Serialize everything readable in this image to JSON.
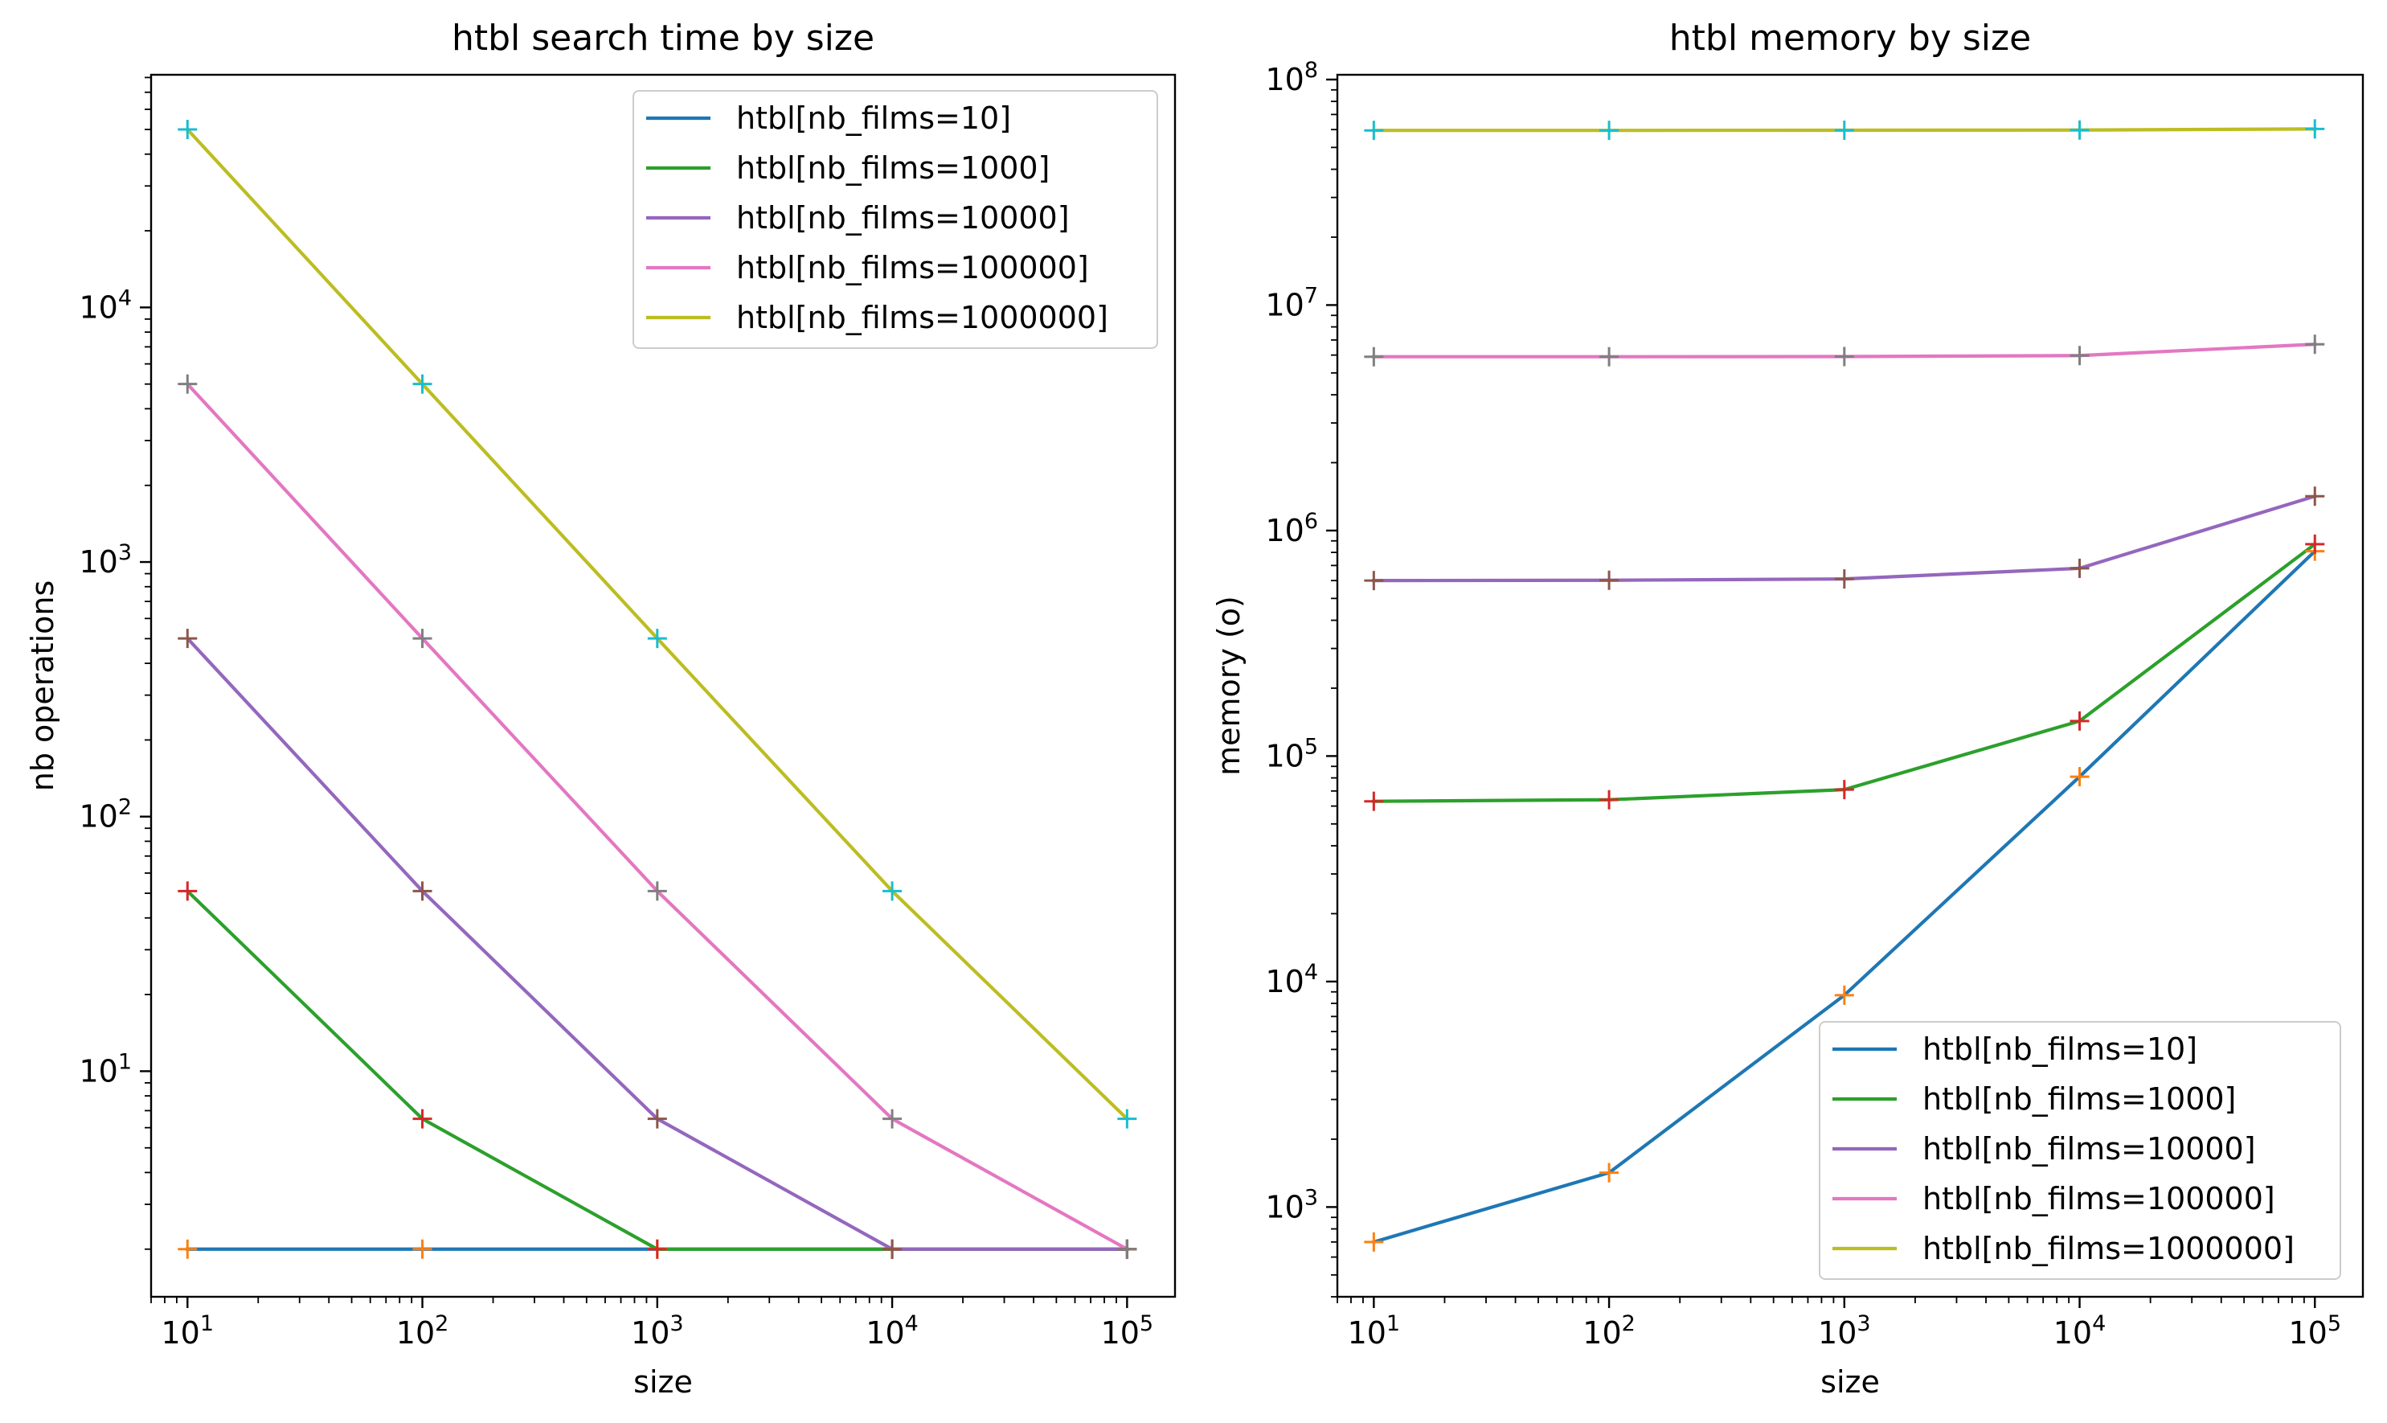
{
  "chart_data": [
    {
      "type": "line",
      "title": "htbl search time by size",
      "xlabel": "size",
      "ylabel": "nb operations",
      "xscale": "log",
      "yscale": "log",
      "xlim": [
        7,
        160000
      ],
      "ylim": [
        1.3,
        82000
      ],
      "xticks": [
        {
          "value": 10,
          "base": "10",
          "exp": "1"
        },
        {
          "value": 100,
          "base": "10",
          "exp": "2"
        },
        {
          "value": 1000,
          "base": "10",
          "exp": "3"
        },
        {
          "value": 10000,
          "base": "10",
          "exp": "4"
        },
        {
          "value": 100000,
          "base": "10",
          "exp": "5"
        }
      ],
      "yticks": [
        {
          "value": 10,
          "base": "10",
          "exp": "1"
        },
        {
          "value": 100,
          "base": "10",
          "exp": "2"
        },
        {
          "value": 1000,
          "base": "10",
          "exp": "3"
        },
        {
          "value": 10000,
          "base": "10",
          "exp": "4"
        }
      ],
      "grid": false,
      "legend_loc": "upper right",
      "x": [
        10,
        100,
        1000,
        10000,
        100000
      ],
      "series": [
        {
          "name": "htbl[nb_films=10]",
          "color": "#1f77b4",
          "marker_color": "#ff7f0e",
          "values": [
            2,
            2,
            2,
            2,
            2
          ]
        },
        {
          "name": "htbl[nb_films=1000]",
          "color": "#2ca02c",
          "marker_color": "#d62728",
          "values": [
            51,
            6.5,
            2,
            2,
            2
          ]
        },
        {
          "name": "htbl[nb_films=10000]",
          "color": "#9467bd",
          "marker_color": "#8c564b",
          "values": [
            501,
            51,
            6.5,
            2,
            2
          ]
        },
        {
          "name": "htbl[nb_films=100000]",
          "color": "#e377c2",
          "marker_color": "#7f7f7f",
          "values": [
            5001,
            501,
            51,
            6.5,
            2
          ]
        },
        {
          "name": "htbl[nb_films=1000000]",
          "color": "#bcbd22",
          "marker_color": "#17becf",
          "values": [
            50001,
            5001,
            501,
            51,
            6.5
          ]
        }
      ]
    },
    {
      "type": "line",
      "title": "htbl memory by size",
      "xlabel": "size",
      "ylabel": "memory (o)",
      "xscale": "log",
      "yscale": "log",
      "xlim": [
        7,
        160000
      ],
      "ylim": [
        400,
        105000000
      ],
      "xticks": [
        {
          "value": 10,
          "base": "10",
          "exp": "1"
        },
        {
          "value": 100,
          "base": "10",
          "exp": "2"
        },
        {
          "value": 1000,
          "base": "10",
          "exp": "3"
        },
        {
          "value": 10000,
          "base": "10",
          "exp": "4"
        },
        {
          "value": 100000,
          "base": "10",
          "exp": "5"
        }
      ],
      "yticks": [
        {
          "value": 1000,
          "base": "10",
          "exp": "3"
        },
        {
          "value": 10000,
          "base": "10",
          "exp": "4"
        },
        {
          "value": 100000,
          "base": "10",
          "exp": "5"
        },
        {
          "value": 1000000,
          "base": "10",
          "exp": "6"
        },
        {
          "value": 10000000,
          "base": "10",
          "exp": "7"
        },
        {
          "value": 100000000,
          "base": "10",
          "exp": "8"
        }
      ],
      "grid": false,
      "legend_loc": "lower right",
      "x": [
        10,
        100,
        1000,
        10000,
        100000
      ],
      "series": [
        {
          "name": "htbl[nb_films=10]",
          "color": "#1f77b4",
          "marker_color": "#ff7f0e",
          "values": [
            700,
            1420,
            8700,
            81000,
            810000
          ]
        },
        {
          "name": "htbl[nb_films=1000]",
          "color": "#2ca02c",
          "marker_color": "#d62728",
          "values": [
            63000,
            64000,
            71000,
            143000,
            870000
          ]
        },
        {
          "name": "htbl[nb_films=10000]",
          "color": "#9467bd",
          "marker_color": "#8c564b",
          "values": [
            600000,
            602000,
            610000,
            680000,
            1420000
          ]
        },
        {
          "name": "htbl[nb_films=100000]",
          "color": "#e377c2",
          "marker_color": "#7f7f7f",
          "values": [
            5900000,
            5900000,
            5910000,
            5970000,
            6700000
          ]
        },
        {
          "name": "htbl[nb_films=1000000]",
          "color": "#bcbd22",
          "marker_color": "#17becf",
          "values": [
            59500000,
            59500000,
            59600000,
            59700000,
            60400000
          ]
        }
      ]
    }
  ]
}
